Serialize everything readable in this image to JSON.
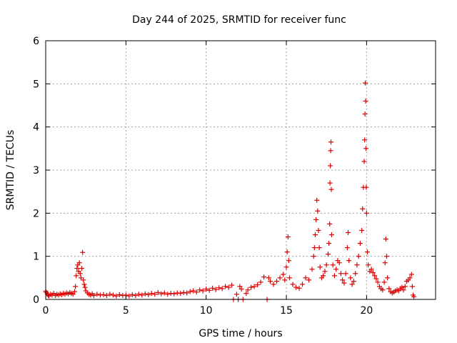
{
  "chart_data": {
    "type": "scatter",
    "title": "Day 244 of 2025, SRMTID for receiver func",
    "xlabel": "GPS time / hours",
    "ylabel": "SRMTID / TECUs",
    "xlim": [
      0,
      24.3
    ],
    "ylim": [
      0,
      6
    ],
    "x_ticks": [
      0,
      5,
      10,
      15,
      20
    ],
    "x_tick_labels": [
      "0",
      "5",
      "10",
      "15",
      "20"
    ],
    "y_ticks": [
      0,
      1,
      2,
      3,
      4,
      5,
      6
    ],
    "y_tick_labels": [
      "0",
      "1",
      "2",
      "3",
      "4",
      "5",
      "6"
    ],
    "grid": true,
    "marker": "+",
    "colors": {
      "series": "#dd0000",
      "grid": "#a0a0a0",
      "axis": "#000000"
    },
    "series": [
      {
        "name": "SRMTID",
        "points": [
          [
            0.0,
            0.19
          ],
          [
            0.05,
            0.16
          ],
          [
            0.1,
            0.13
          ],
          [
            0.15,
            0.1
          ],
          [
            0.2,
            0.08
          ],
          [
            0.3,
            0.12
          ],
          [
            0.4,
            0.1
          ],
          [
            0.5,
            0.14
          ],
          [
            0.6,
            0.09
          ],
          [
            0.7,
            0.12
          ],
          [
            0.8,
            0.1
          ],
          [
            0.9,
            0.13
          ],
          [
            1.0,
            0.11
          ],
          [
            1.1,
            0.14
          ],
          [
            1.2,
            0.12
          ],
          [
            1.3,
            0.15
          ],
          [
            1.4,
            0.13
          ],
          [
            1.5,
            0.16
          ],
          [
            1.6,
            0.14
          ],
          [
            1.7,
            0.12
          ],
          [
            1.8,
            0.18
          ],
          [
            1.85,
            0.3
          ],
          [
            1.9,
            0.55
          ],
          [
            1.95,
            0.72
          ],
          [
            2.0,
            0.8
          ],
          [
            2.05,
            0.65
          ],
          [
            2.1,
            0.85
          ],
          [
            2.15,
            0.6
          ],
          [
            2.2,
            0.5
          ],
          [
            2.25,
            0.72
          ],
          [
            2.3,
            1.09
          ],
          [
            2.35,
            0.45
          ],
          [
            2.4,
            0.35
          ],
          [
            2.45,
            0.28
          ],
          [
            2.5,
            0.2
          ],
          [
            2.6,
            0.15
          ],
          [
            2.7,
            0.12
          ],
          [
            2.8,
            0.1
          ],
          [
            2.9,
            0.13
          ],
          [
            3.0,
            0.09
          ],
          [
            3.2,
            0.12
          ],
          [
            3.4,
            0.1
          ],
          [
            3.6,
            0.11
          ],
          [
            3.8,
            0.09
          ],
          [
            4.0,
            0.12
          ],
          [
            4.2,
            0.1
          ],
          [
            4.4,
            0.08
          ],
          [
            4.6,
            0.11
          ],
          [
            4.8,
            0.09
          ],
          [
            5.0,
            0.1
          ],
          [
            5.2,
            0.08
          ],
          [
            5.4,
            0.11
          ],
          [
            5.6,
            0.09
          ],
          [
            5.8,
            0.12
          ],
          [
            6.0,
            0.1
          ],
          [
            6.2,
            0.13
          ],
          [
            6.4,
            0.11
          ],
          [
            6.6,
            0.14
          ],
          [
            6.8,
            0.12
          ],
          [
            7.0,
            0.16
          ],
          [
            7.2,
            0.13
          ],
          [
            7.4,
            0.15
          ],
          [
            7.6,
            0.12
          ],
          [
            7.8,
            0.14
          ],
          [
            8.0,
            0.13
          ],
          [
            8.2,
            0.15
          ],
          [
            8.4,
            0.14
          ],
          [
            8.6,
            0.16
          ],
          [
            8.8,
            0.15
          ],
          [
            9.0,
            0.18
          ],
          [
            9.2,
            0.2
          ],
          [
            9.4,
            0.17
          ],
          [
            9.6,
            0.22
          ],
          [
            9.8,
            0.2
          ],
          [
            10.0,
            0.24
          ],
          [
            10.2,
            0.21
          ],
          [
            10.4,
            0.26
          ],
          [
            10.6,
            0.23
          ],
          [
            10.8,
            0.27
          ],
          [
            11.0,
            0.25
          ],
          [
            11.2,
            0.3
          ],
          [
            11.4,
            0.28
          ],
          [
            11.6,
            0.33
          ],
          [
            11.7,
            0.0
          ],
          [
            11.9,
            0.12
          ],
          [
            12.0,
            0.0
          ],
          [
            12.1,
            0.3
          ],
          [
            12.2,
            0.24
          ],
          [
            12.3,
            0.0
          ],
          [
            12.5,
            0.14
          ],
          [
            12.6,
            0.22
          ],
          [
            12.8,
            0.28
          ],
          [
            13.0,
            0.3
          ],
          [
            13.2,
            0.34
          ],
          [
            13.4,
            0.4
          ],
          [
            13.6,
            0.52
          ],
          [
            13.8,
            0.0
          ],
          [
            13.9,
            0.5
          ],
          [
            14.0,
            0.42
          ],
          [
            14.2,
            0.35
          ],
          [
            14.4,
            0.42
          ],
          [
            14.6,
            0.5
          ],
          [
            14.8,
            0.58
          ],
          [
            14.9,
            0.45
          ],
          [
            15.0,
            0.75
          ],
          [
            15.05,
            1.1
          ],
          [
            15.1,
            1.45
          ],
          [
            15.15,
            0.9
          ],
          [
            15.2,
            0.5
          ],
          [
            15.4,
            0.35
          ],
          [
            15.6,
            0.28
          ],
          [
            15.8,
            0.26
          ],
          [
            16.0,
            0.35
          ],
          [
            16.2,
            0.5
          ],
          [
            16.4,
            0.45
          ],
          [
            16.6,
            0.7
          ],
          [
            16.7,
            1.0
          ],
          [
            16.75,
            1.2
          ],
          [
            16.8,
            1.5
          ],
          [
            16.85,
            1.85
          ],
          [
            16.9,
            2.3
          ],
          [
            16.95,
            2.05
          ],
          [
            17.0,
            1.6
          ],
          [
            17.05,
            1.2
          ],
          [
            17.1,
            0.75
          ],
          [
            17.2,
            0.5
          ],
          [
            17.3,
            0.55
          ],
          [
            17.4,
            0.65
          ],
          [
            17.5,
            0.8
          ],
          [
            17.6,
            1.05
          ],
          [
            17.65,
            1.3
          ],
          [
            17.7,
            1.75
          ],
          [
            17.72,
            2.7
          ],
          [
            17.74,
            3.1
          ],
          [
            17.76,
            3.45
          ],
          [
            17.78,
            3.65
          ],
          [
            17.8,
            2.55
          ],
          [
            17.82,
            1.5
          ],
          [
            17.9,
            0.8
          ],
          [
            18.0,
            0.55
          ],
          [
            18.1,
            0.7
          ],
          [
            18.2,
            0.9
          ],
          [
            18.3,
            0.85
          ],
          [
            18.4,
            0.6
          ],
          [
            18.5,
            0.45
          ],
          [
            18.6,
            0.38
          ],
          [
            18.7,
            0.6
          ],
          [
            18.8,
            1.2
          ],
          [
            18.85,
            1.55
          ],
          [
            18.9,
            0.9
          ],
          [
            19.0,
            0.5
          ],
          [
            19.1,
            0.35
          ],
          [
            19.2,
            0.42
          ],
          [
            19.3,
            0.6
          ],
          [
            19.4,
            0.8
          ],
          [
            19.5,
            1.0
          ],
          [
            19.6,
            1.3
          ],
          [
            19.7,
            1.6
          ],
          [
            19.75,
            2.1
          ],
          [
            19.8,
            2.6
          ],
          [
            19.85,
            3.2
          ],
          [
            19.88,
            3.7
          ],
          [
            19.9,
            4.3
          ],
          [
            19.92,
            5.02
          ],
          [
            19.94,
            4.6
          ],
          [
            19.96,
            3.5
          ],
          [
            19.98,
            2.6
          ],
          [
            20.0,
            2.0
          ],
          [
            20.05,
            1.1
          ],
          [
            20.1,
            0.8
          ],
          [
            20.2,
            0.65
          ],
          [
            20.3,
            0.7
          ],
          [
            20.4,
            0.62
          ],
          [
            20.5,
            0.55
          ],
          [
            20.6,
            0.48
          ],
          [
            20.7,
            0.4
          ],
          [
            20.8,
            0.3
          ],
          [
            20.9,
            0.25
          ],
          [
            21.0,
            0.22
          ],
          [
            21.1,
            0.4
          ],
          [
            21.15,
            0.85
          ],
          [
            21.2,
            1.4
          ],
          [
            21.25,
            1.0
          ],
          [
            21.3,
            0.5
          ],
          [
            21.4,
            0.25
          ],
          [
            21.5,
            0.18
          ],
          [
            21.6,
            0.15
          ],
          [
            21.7,
            0.17
          ],
          [
            21.8,
            0.2
          ],
          [
            21.9,
            0.22
          ],
          [
            22.0,
            0.2
          ],
          [
            22.1,
            0.25
          ],
          [
            22.2,
            0.28
          ],
          [
            22.3,
            0.22
          ],
          [
            22.4,
            0.3
          ],
          [
            22.5,
            0.42
          ],
          [
            22.6,
            0.45
          ],
          [
            22.7,
            0.5
          ],
          [
            22.8,
            0.58
          ],
          [
            22.85,
            0.3
          ],
          [
            22.9,
            0.1
          ],
          [
            22.95,
            0.06
          ]
        ]
      }
    ]
  }
}
